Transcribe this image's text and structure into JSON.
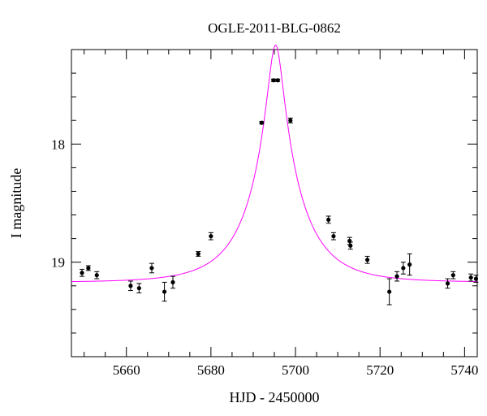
{
  "chart_data": {
    "type": "scatter",
    "title": "OGLE-2011-BLG-0862",
    "xlabel": "HJD - 2450000",
    "ylabel": "I magnitude",
    "xlim": [
      5647,
      5743
    ],
    "ylim": [
      19.8,
      17.2
    ],
    "y_inverted": true,
    "x_ticks": [
      5660,
      5680,
      5700,
      5720,
      5740
    ],
    "y_ticks": [
      18,
      19
    ],
    "x_tick_labels": [
      "5660",
      "5680",
      "5700",
      "5720",
      "5740"
    ],
    "y_tick_labels": [
      "18",
      "19"
    ],
    "grid": false,
    "colors": {
      "points": "#000000",
      "model": "#ff00ff",
      "axes": "#000000"
    },
    "series": [
      {
        "type": "points_with_errorbars",
        "x": [
          5649.5,
          5651,
          5653,
          5661,
          5663,
          5666,
          5669,
          5671,
          5677,
          5680,
          5692,
          5694.8,
          5695.8,
          5698.8,
          5707.8,
          5709,
          5712.8,
          5713,
          5717,
          5722.2,
          5724,
          5725.5,
          5727,
          5736,
          5737.3,
          5741.5,
          5742.7
        ],
        "y": [
          19.09,
          19.05,
          19.11,
          19.2,
          19.22,
          19.05,
          19.25,
          19.17,
          18.93,
          18.78,
          17.82,
          17.46,
          17.46,
          17.8,
          18.64,
          18.78,
          18.82,
          18.86,
          18.98,
          19.25,
          19.12,
          19.05,
          19.02,
          19.18,
          19.11,
          19.13,
          19.14
        ],
        "err": [
          0.03,
          0.02,
          0.03,
          0.04,
          0.04,
          0.04,
          0.08,
          0.05,
          0.02,
          0.03,
          0.01,
          0.01,
          0.01,
          0.02,
          0.03,
          0.03,
          0.03,
          0.03,
          0.03,
          0.11,
          0.04,
          0.05,
          0.09,
          0.04,
          0.03,
          0.03,
          0.03
        ]
      },
      {
        "type": "model_curve",
        "model": "paczynski",
        "t0": 5695.3,
        "u0": 0.145,
        "tE": 12.0,
        "baseline": 19.17,
        "blend_fraction": 0.9
      }
    ]
  }
}
